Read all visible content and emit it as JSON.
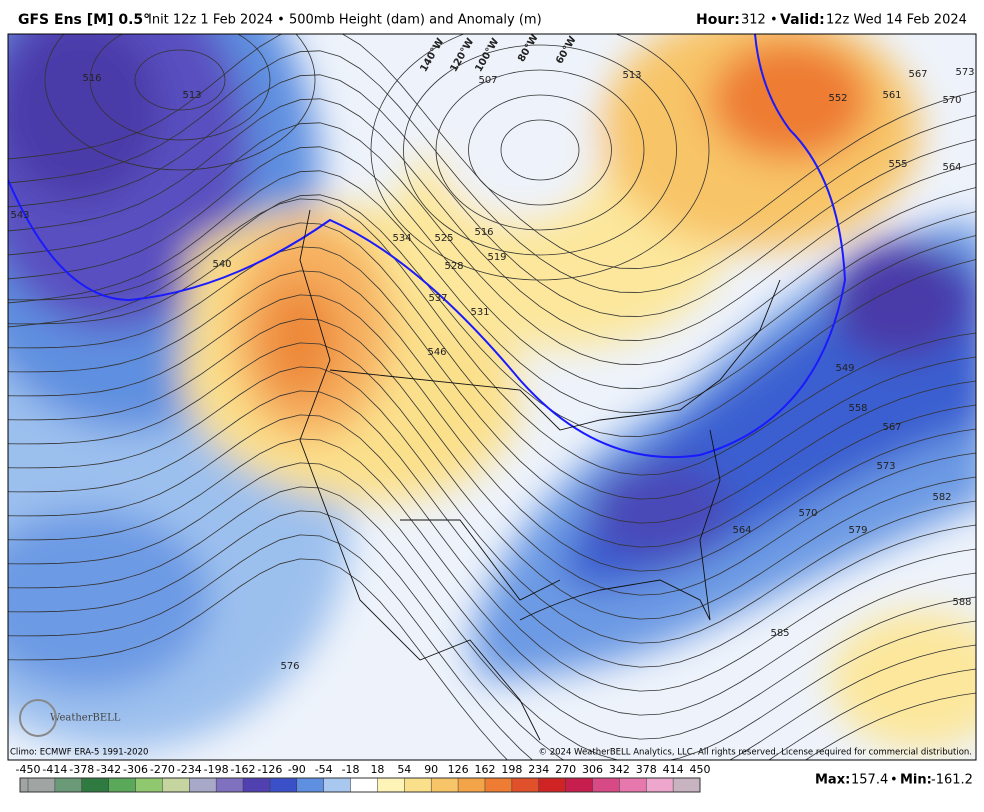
{
  "header": {
    "title": "GFS Ens [M] 0.5°",
    "subtitle": "Init 12z 1 Feb 2024 • 500mb Height (dam) and Anomaly (m)",
    "hour_label": "Hour:",
    "hour": 312,
    "separator": "•",
    "valid_label": "Valid:",
    "valid": "12z Wed 14 Feb 2024"
  },
  "map": {
    "contour_labels": [
      "516",
      "513",
      "543",
      "540",
      "534",
      "525",
      "528",
      "516",
      "519",
      "531",
      "537",
      "546",
      "507",
      "513",
      "552",
      "561",
      "567",
      "573",
      "570",
      "555",
      "564",
      "549",
      "558",
      "567",
      "573",
      "564",
      "570",
      "579",
      "582",
      "585",
      "588",
      "576"
    ],
    "longitude_labels": [
      "140°W",
      "120°W",
      "100°W",
      "80°W",
      "60°W"
    ],
    "logo": "WeatherBELL"
  },
  "footer": {
    "climo": "Climo: ECMWF ERA-5 1991-2020",
    "copyright": "© 2024 WeatherBELL Analytics, LLC. All rights reserved. License required for commercial distribution."
  },
  "colorbar": {
    "ticks": [
      -450,
      -414,
      -378,
      -342,
      -306,
      -270,
      -234,
      -198,
      -162,
      -126,
      -90,
      -54,
      -18,
      18,
      54,
      90,
      126,
      162,
      198,
      234,
      270,
      306,
      342,
      378,
      414,
      450
    ],
    "colors": [
      "#a0a4a2",
      "#6a9a78",
      "#2e7a40",
      "#5aa85a",
      "#90c870",
      "#c6d4a0",
      "#a8a8c8",
      "#8070c0",
      "#5040b0",
      "#3a50c8",
      "#5e8fe0",
      "#a8c8f0",
      "#ffffff",
      "#fff4b8",
      "#fbe08c",
      "#f8c468",
      "#f4a448",
      "#ee7c32",
      "#e0502a",
      "#d02424",
      "#c81e4e",
      "#d84a86",
      "#e678ae",
      "#eea6cc",
      "#c8b4c0"
    ]
  },
  "stats": {
    "max_label": "Max:",
    "max": 157.4,
    "separator": "•",
    "min_label": "Min:",
    "min": -161.2
  }
}
